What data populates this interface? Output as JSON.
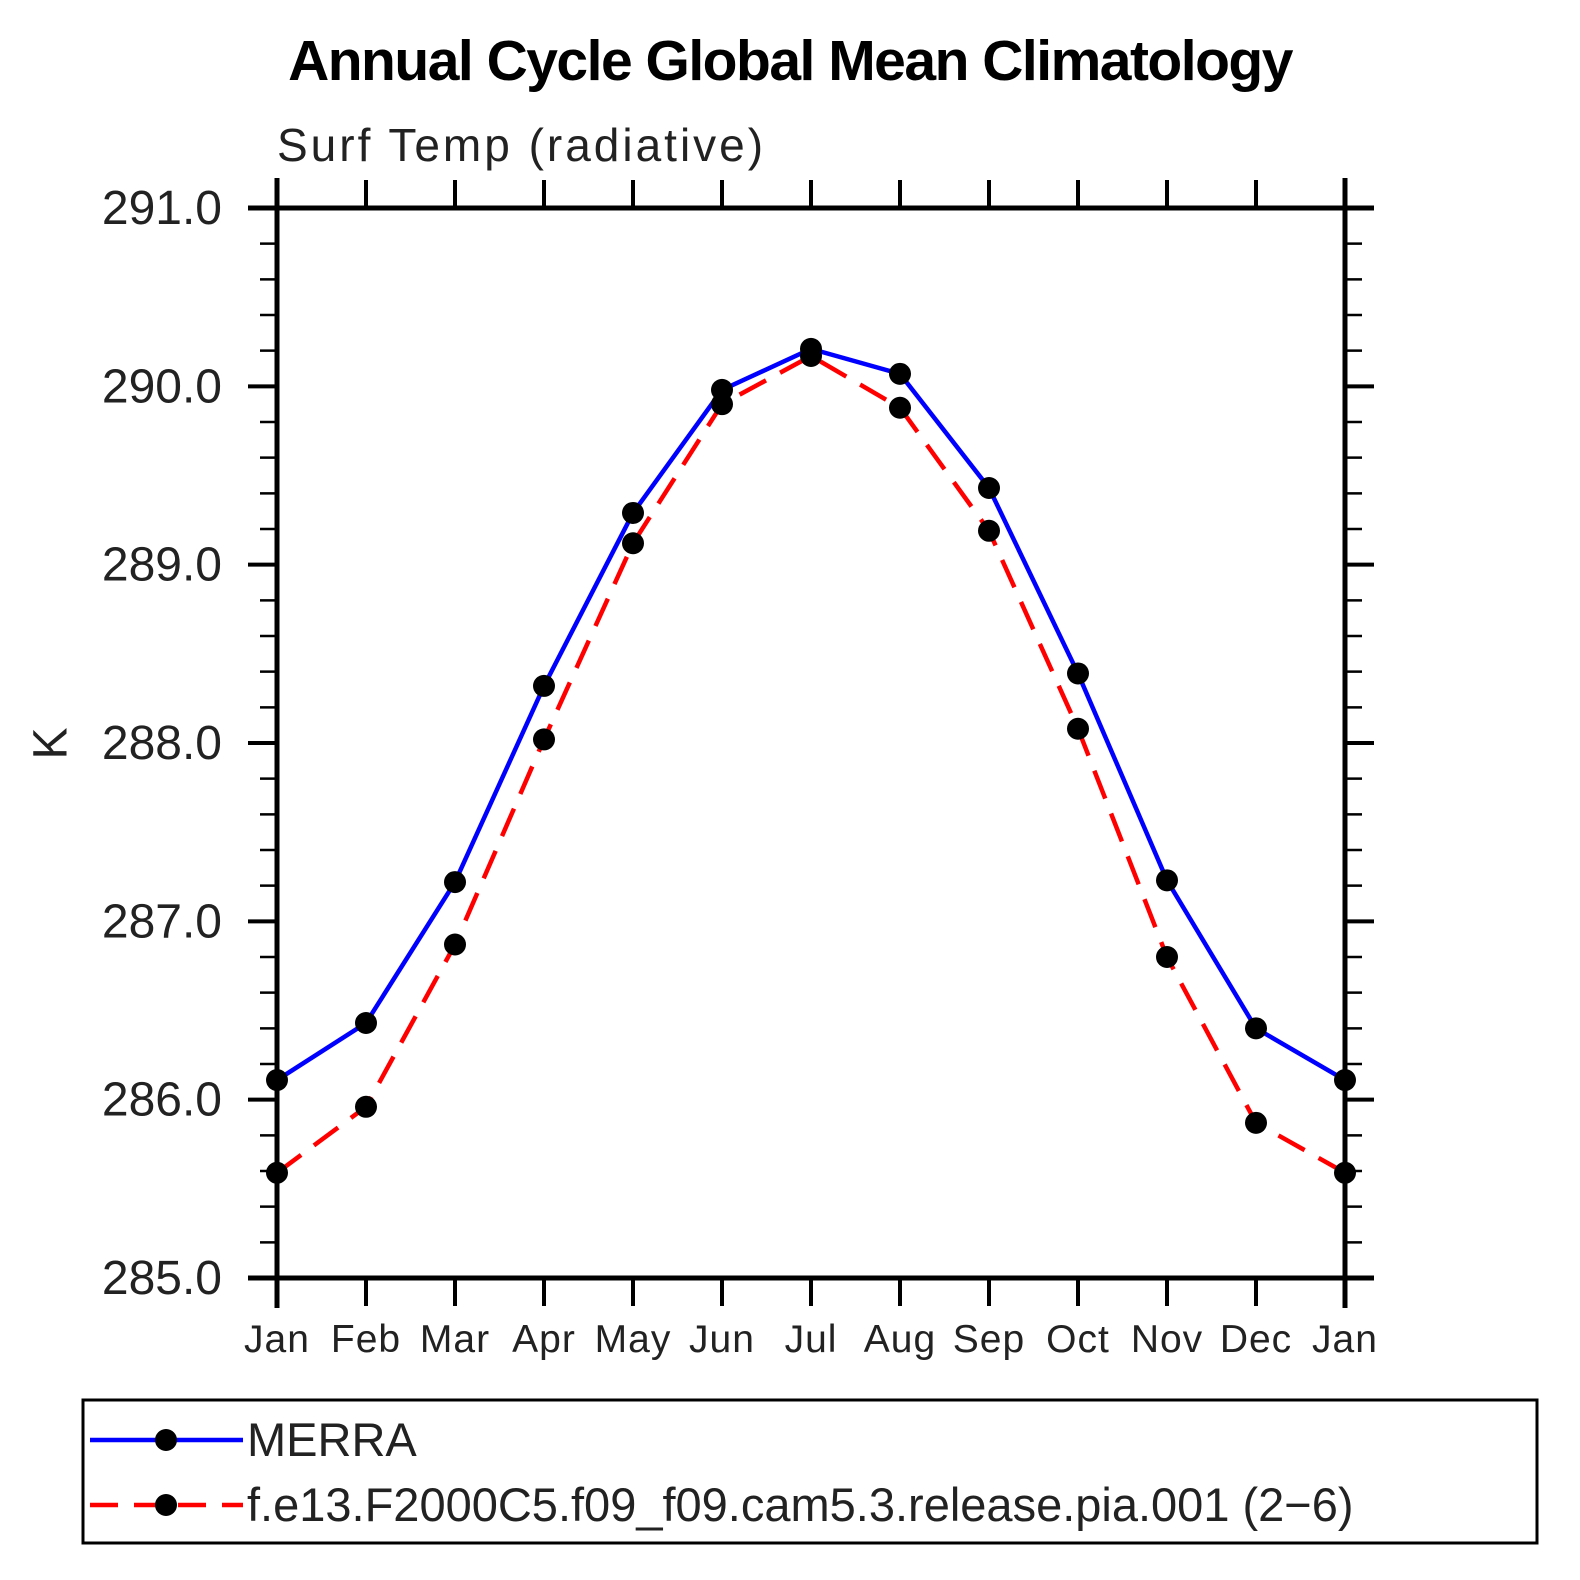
{
  "page": {
    "background": "#ffffff"
  },
  "chart_data": {
    "type": "line",
    "title": "Annual Cycle Global Mean Climatology",
    "subtitle": "Surf Temp (radiative)",
    "ylabel": "K",
    "xlabel": "",
    "categories": [
      "Jan",
      "Feb",
      "Mar",
      "Apr",
      "May",
      "Jun",
      "Jul",
      "Aug",
      "Sep",
      "Oct",
      "Nov",
      "Dec",
      "Jan"
    ],
    "ylim": [
      285.0,
      291.0
    ],
    "ytick_step": 1.0,
    "ytick_minor_step": 0.2,
    "ytick_labels": [
      "285.0",
      "286.0",
      "287.0",
      "288.0",
      "289.0",
      "290.0",
      "291.0"
    ],
    "grid": false,
    "legend_position": "bottom-box",
    "axis_color": "#000000",
    "text_color": "#222222",
    "series": [
      {
        "name": "MERRA",
        "color": "#0000ff",
        "style": "solid",
        "marker": "circle",
        "marker_color": "#000000",
        "values": [
          286.11,
          286.43,
          287.22,
          288.32,
          289.29,
          289.98,
          290.21,
          290.07,
          289.43,
          288.39,
          287.23,
          286.4,
          286.11
        ]
      },
      {
        "name": "f.e13.F2000C5.f09_f09.cam5.3.release.pia.001 (2−6)",
        "color": "#ff0000",
        "style": "dashed",
        "marker": "circle",
        "marker_color": "#000000",
        "values": [
          285.59,
          285.96,
          286.87,
          288.02,
          289.12,
          289.9,
          290.17,
          289.88,
          289.19,
          288.08,
          286.8,
          285.87,
          285.59
        ]
      }
    ]
  }
}
